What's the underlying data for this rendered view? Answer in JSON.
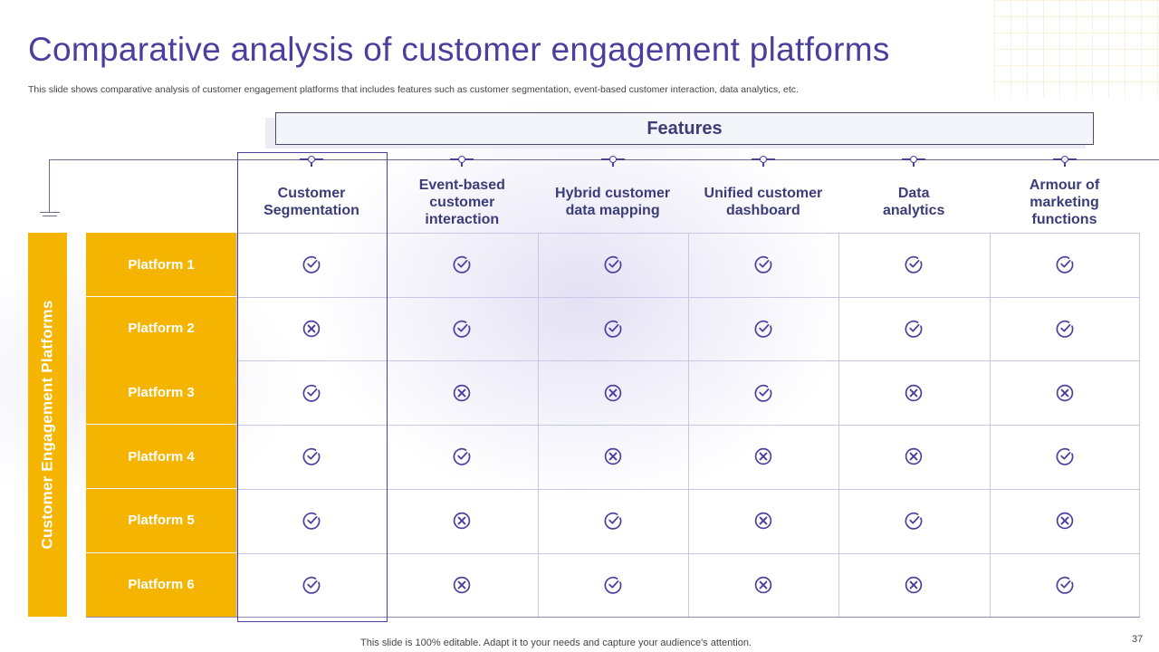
{
  "slide": {
    "title": "Comparative analysis of customer engagement platforms",
    "subtitle": "This slide shows comparative analysis of customer engagement platforms that includes features such as customer segmentation, event-based customer interaction, data analytics, etc.",
    "features_header": "Features",
    "side_label": "Customer Engagement Platforms",
    "footer_note": "This slide is 100% editable. Adapt it to your needs and capture your audience's attention.",
    "page_number": "37",
    "accent_color": "#4b3f9e",
    "highlight_color": "#f5b400"
  },
  "columns": [
    {
      "label": "Customer\nSegmentation"
    },
    {
      "label": "Event-based\ncustomer\ninteraction"
    },
    {
      "label": "Hybrid customer\ndata mapping"
    },
    {
      "label": "Unified customer\ndashboard"
    },
    {
      "label": "Data\nanalytics"
    },
    {
      "label": "Armour of\nmarketing\nfunctions"
    }
  ],
  "rows": [
    {
      "label": "Platform 1",
      "cells": [
        "check",
        "check",
        "check",
        "check",
        "check",
        "check"
      ]
    },
    {
      "label": "Platform 2",
      "cells": [
        "cross",
        "check",
        "check",
        "check",
        "check",
        "check"
      ]
    },
    {
      "label": "Platform 3",
      "cells": [
        "check",
        "cross",
        "cross",
        "check",
        "cross",
        "cross"
      ]
    },
    {
      "label": "Platform 4",
      "cells": [
        "check",
        "check",
        "cross",
        "cross",
        "cross",
        "check"
      ]
    },
    {
      "label": "Platform 5",
      "cells": [
        "check",
        "cross",
        "check",
        "cross",
        "check",
        "cross"
      ]
    },
    {
      "label": "Platform 6",
      "cells": [
        "check",
        "cross",
        "check",
        "cross",
        "cross",
        "check"
      ]
    }
  ],
  "icons": {
    "check": "check-circle-icon",
    "cross": "x-circle-icon"
  }
}
